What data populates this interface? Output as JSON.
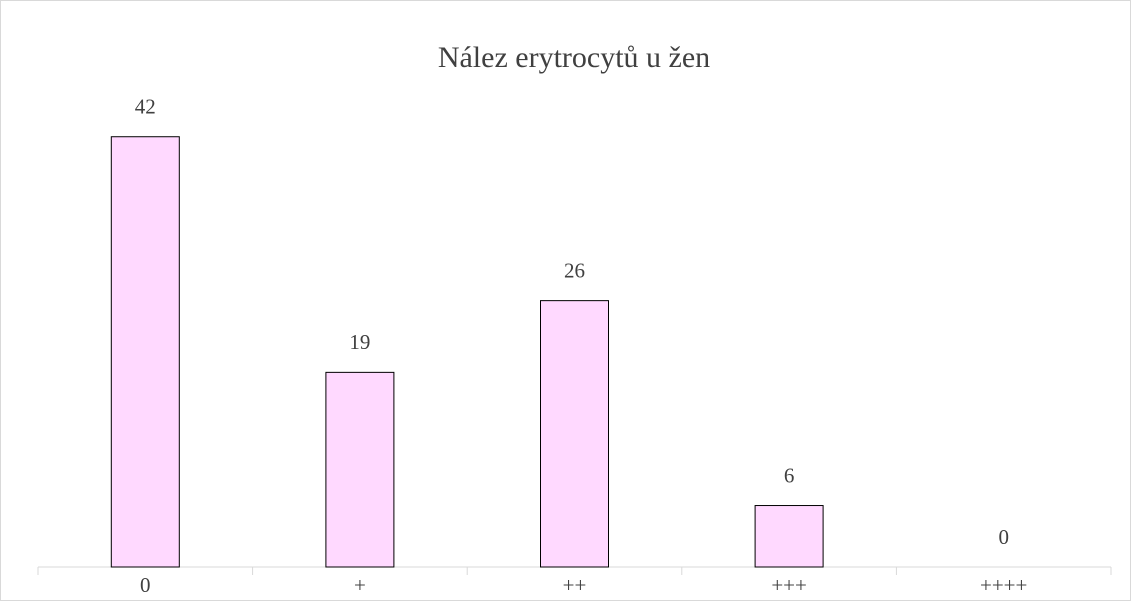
{
  "chart_data": {
    "type": "bar",
    "title": "Nález erytrocytů u žen",
    "categories": [
      "0",
      "+",
      "++",
      "+++",
      "++++"
    ],
    "values": [
      42,
      19,
      26,
      6,
      0
    ],
    "color": "#ffd9ff",
    "edge_color": "#000000",
    "ylim": [
      0,
      45
    ]
  }
}
